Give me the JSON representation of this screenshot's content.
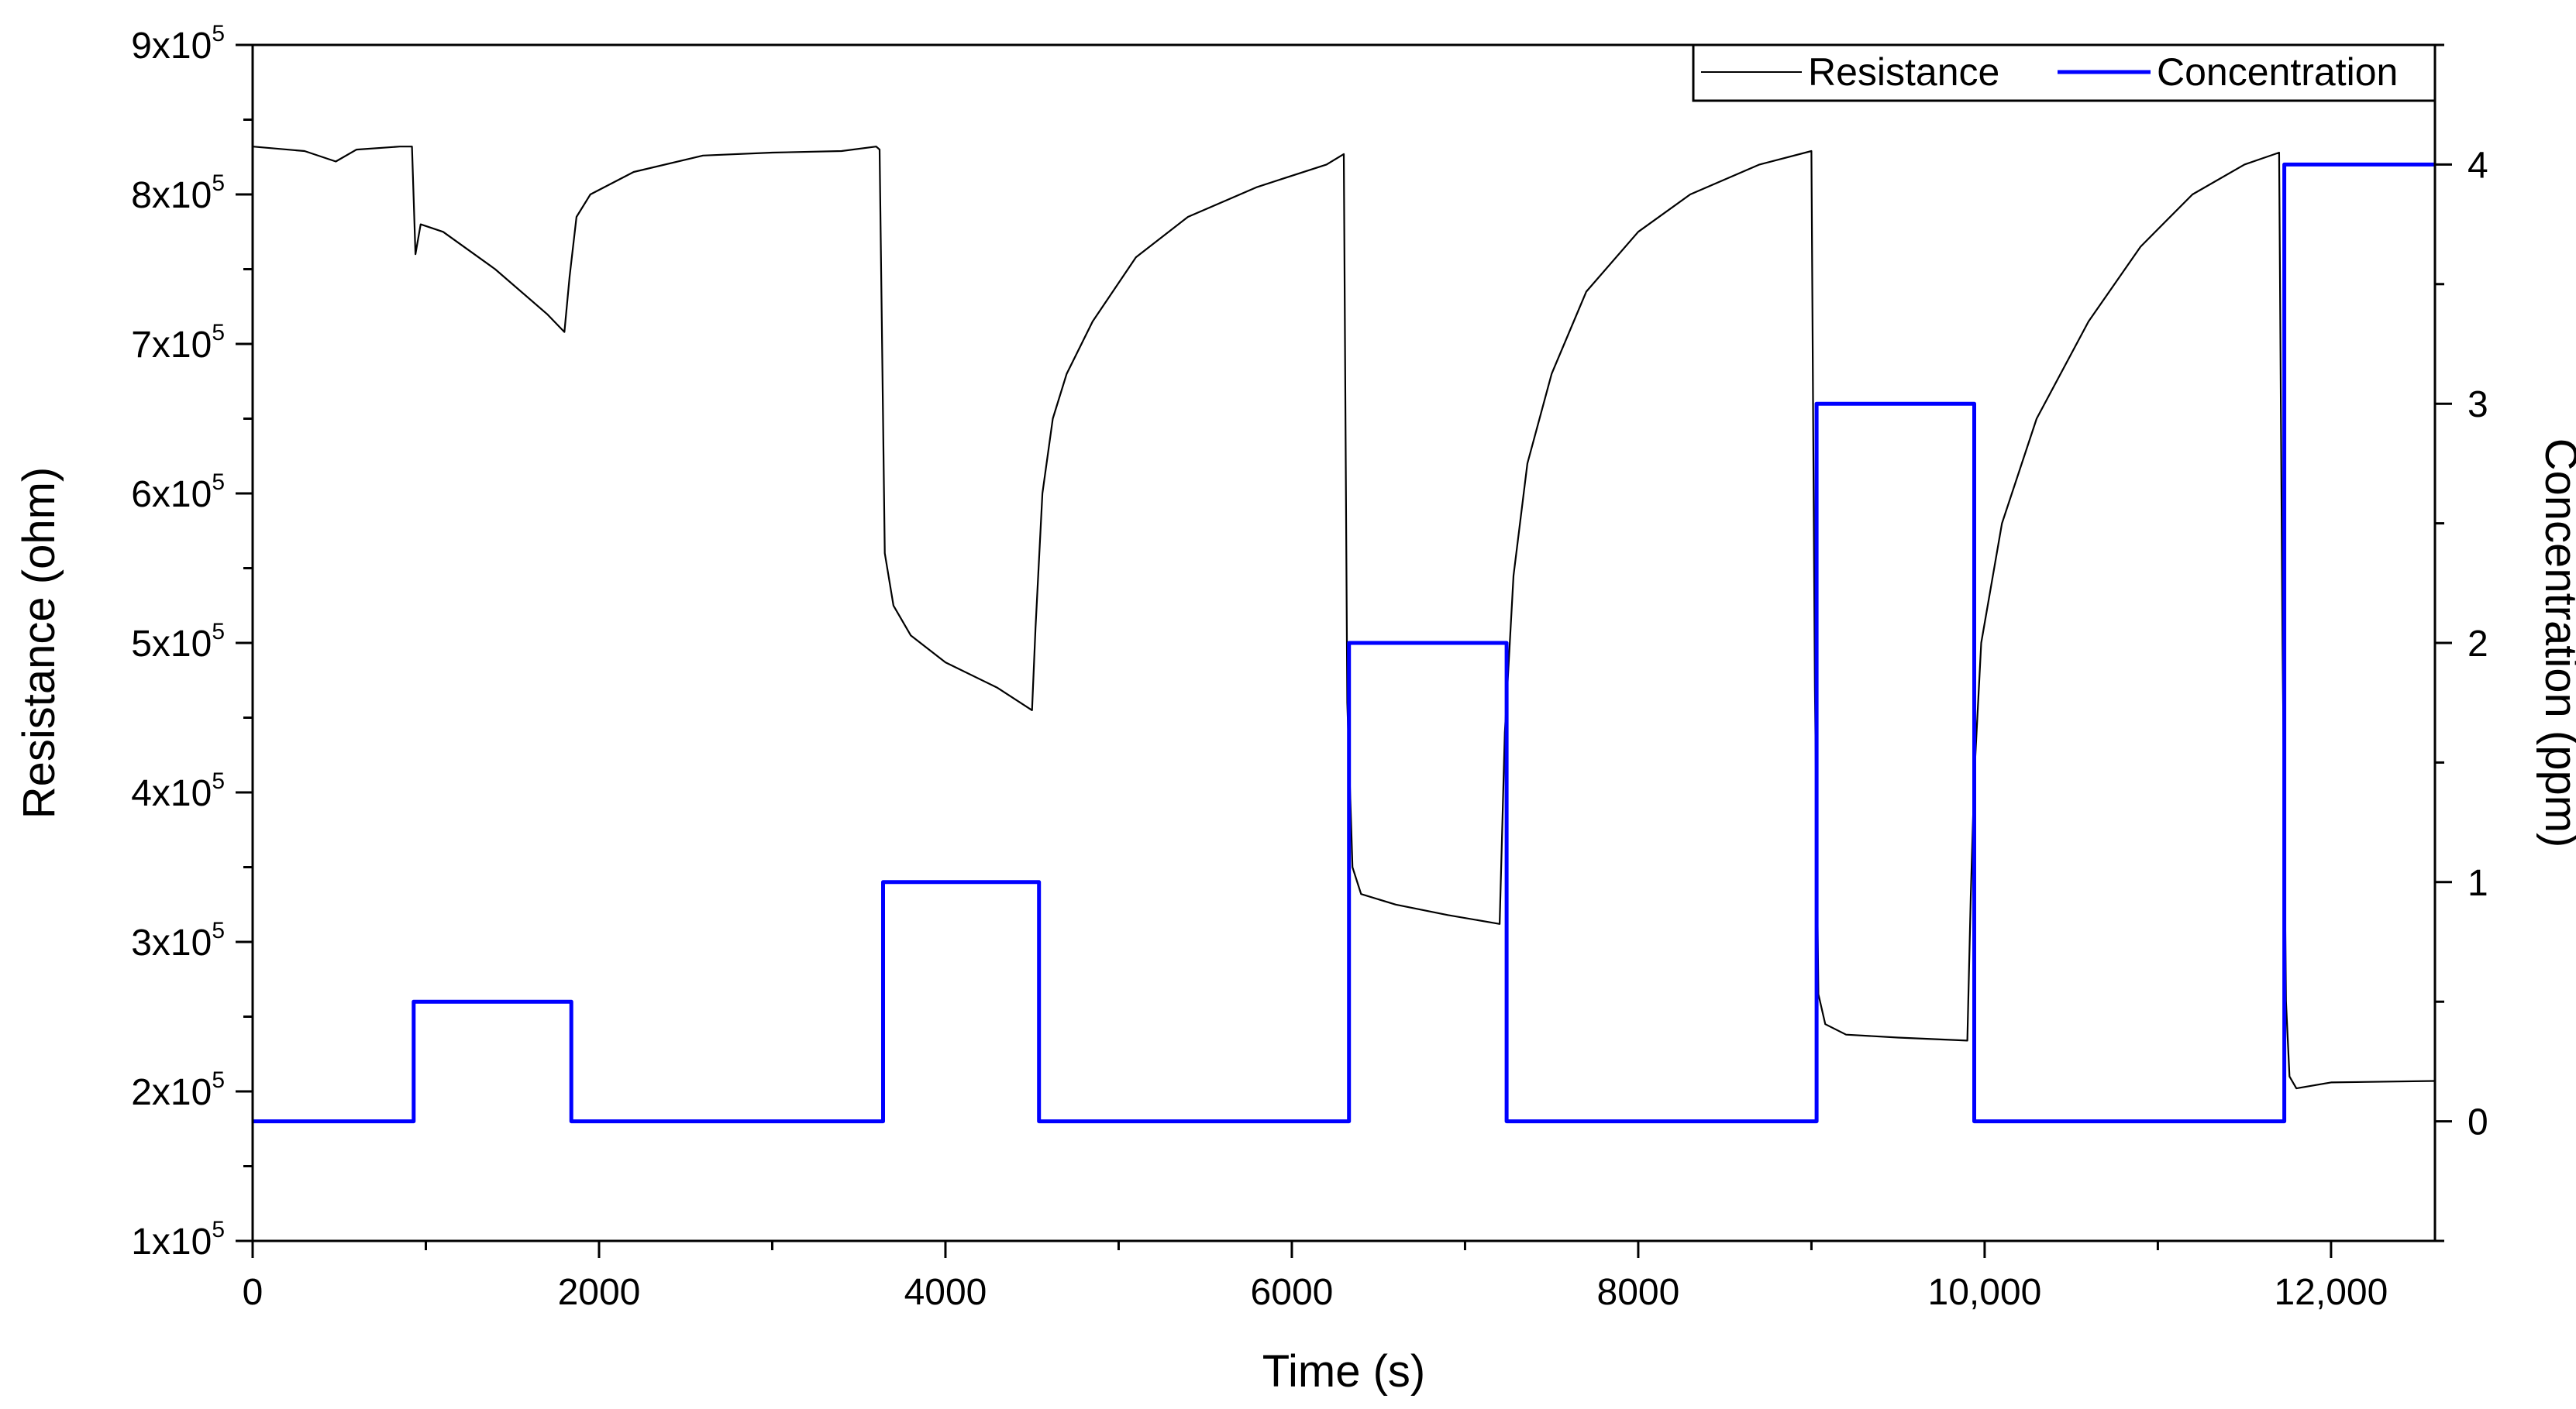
{
  "chart_data": {
    "type": "line",
    "title": "",
    "xlabel": "Time (s)",
    "ylabel": "Resistance (ohm)",
    "y2label": "Concentration (ppm)",
    "xlim": [
      0,
      12600
    ],
    "ylim": [
      100000,
      900000
    ],
    "y2lim": [
      -0.5,
      4.5
    ],
    "grid": false,
    "legend_position": "top-right",
    "x_ticks": [
      {
        "value": 0,
        "label": "0"
      },
      {
        "value": 2000,
        "label": "2000"
      },
      {
        "value": 4000,
        "label": "4000"
      },
      {
        "value": 6000,
        "label": "6000"
      },
      {
        "value": 8000,
        "label": "8000"
      },
      {
        "value": 10000,
        "label": "10,000"
      },
      {
        "value": 12000,
        "label": "12,000"
      }
    ],
    "y_ticks": [
      {
        "value": 100000,
        "mant": "1x10",
        "exp": "5"
      },
      {
        "value": 200000,
        "mant": "2x10",
        "exp": "5"
      },
      {
        "value": 300000,
        "mant": "3x10",
        "exp": "5"
      },
      {
        "value": 400000,
        "mant": "4x10",
        "exp": "5"
      },
      {
        "value": 500000,
        "mant": "5x10",
        "exp": "5"
      },
      {
        "value": 600000,
        "mant": "6x10",
        "exp": "5"
      },
      {
        "value": 700000,
        "mant": "7x10",
        "exp": "5"
      },
      {
        "value": 800000,
        "mant": "8x10",
        "exp": "5"
      },
      {
        "value": 900000,
        "mant": "9x10",
        "exp": "5"
      }
    ],
    "y2_ticks": [
      {
        "value": 0,
        "label": "0"
      },
      {
        "value": 1,
        "label": "1"
      },
      {
        "value": 2,
        "label": "2"
      },
      {
        "value": 3,
        "label": "3"
      },
      {
        "value": 4,
        "label": "4"
      }
    ],
    "series": [
      {
        "name": "Resistance",
        "color": "#000000",
        "axis": "left",
        "x": [
          0,
          300,
          480,
          600,
          850,
          920,
          940,
          970,
          1100,
          1400,
          1700,
          1800,
          1830,
          1870,
          1950,
          2200,
          2600,
          3000,
          3400,
          3600,
          3620,
          3650,
          3700,
          3800,
          4000,
          4300,
          4500,
          4520,
          4560,
          4620,
          4700,
          4850,
          5100,
          5400,
          5800,
          6200,
          6300,
          6320,
          6350,
          6400,
          6600,
          6900,
          7200,
          7230,
          7280,
          7360,
          7500,
          7700,
          8000,
          8300,
          8700,
          9000,
          9020,
          9040,
          9080,
          9200,
          9500,
          9900,
          9920,
          9940,
          9980,
          10100,
          10300,
          10600,
          10900,
          11200,
          11500,
          11700,
          11720,
          11740,
          11760,
          11800,
          12000,
          12600
        ],
        "values": [
          832000,
          829000,
          822000,
          830000,
          832000,
          832000,
          760000,
          780000,
          775000,
          750000,
          720000,
          708000,
          745000,
          785000,
          800000,
          815000,
          826000,
          828000,
          829000,
          832000,
          830000,
          560000,
          525000,
          505000,
          487000,
          470000,
          455000,
          510000,
          600000,
          650000,
          680000,
          715000,
          758000,
          785000,
          805000,
          820000,
          827000,
          460000,
          350000,
          332000,
          325000,
          318000,
          312000,
          440000,
          545000,
          620000,
          680000,
          735000,
          775000,
          800000,
          820000,
          829000,
          470000,
          265000,
          245000,
          238000,
          236000,
          234000,
          330000,
          410000,
          500000,
          580000,
          650000,
          715000,
          765000,
          800000,
          820000,
          828000,
          500000,
          260000,
          210000,
          202000,
          206000,
          207000
        ]
      },
      {
        "name": "Concentration",
        "color": "#0000ff",
        "axis": "right",
        "x": [
          0,
          930,
          930,
          1840,
          1840,
          3640,
          3640,
          4540,
          4540,
          6330,
          6330,
          7240,
          7240,
          9030,
          9030,
          9940,
          9940,
          11730,
          11730,
          12600
        ],
        "values": [
          0,
          0,
          0.5,
          0.5,
          0,
          0,
          1,
          1,
          0,
          0,
          2,
          2,
          0,
          0,
          3,
          3,
          0,
          0,
          4,
          4
        ]
      }
    ]
  }
}
